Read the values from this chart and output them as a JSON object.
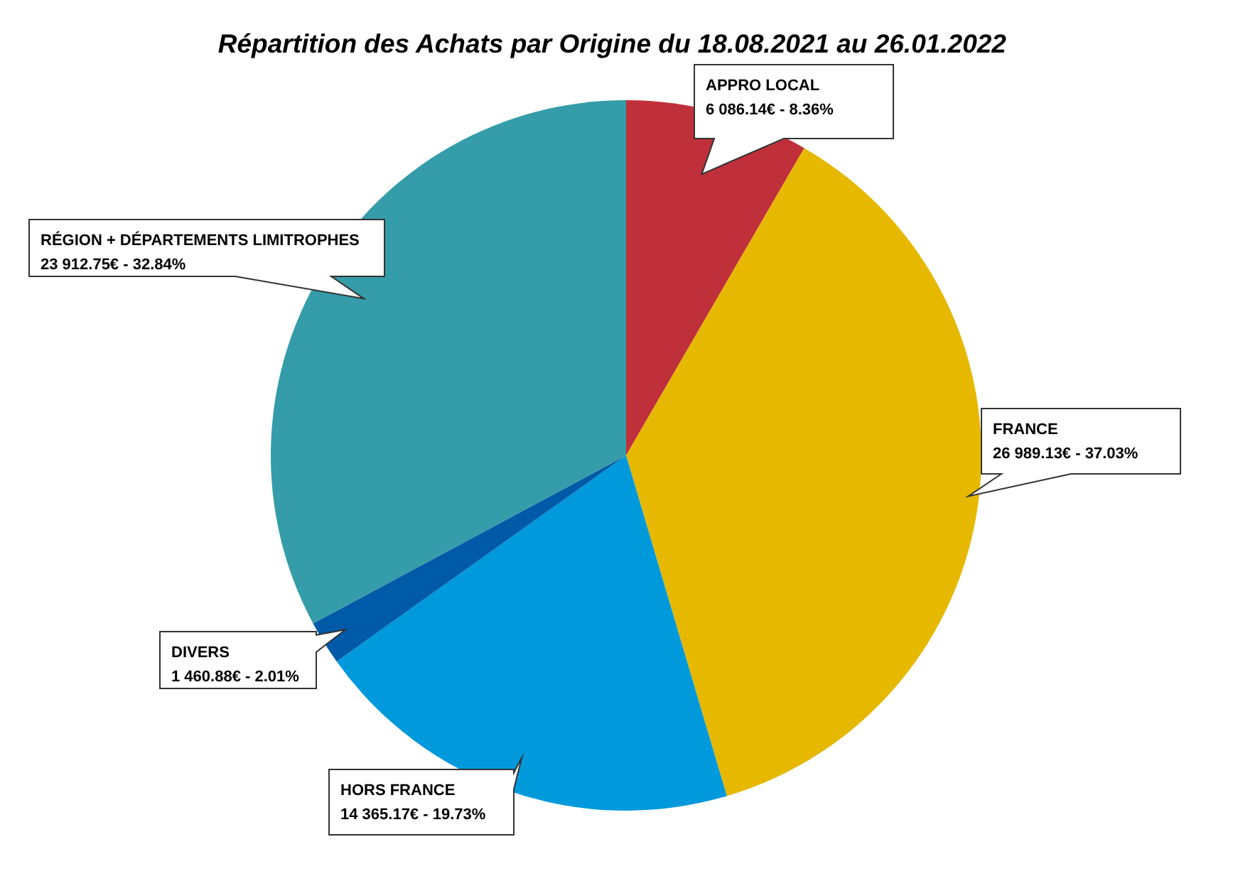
{
  "chart_data": {
    "type": "pie",
    "title": "Répartition des Achats par Origine du 18.08.2021 au 26.01.2022",
    "categories": [
      "APPRO LOCAL",
      "FRANCE",
      "HORS FRANCE",
      "DIVERS",
      "RÉGION + DÉPARTEMENTS LIMITROPHES"
    ],
    "values": [
      6086.14,
      26989.13,
      14365.17,
      1460.88,
      23912.75
    ],
    "colors": [
      "#c0303a",
      "#e6b800",
      "#0099dc",
      "#005aa8",
      "#359ca9"
    ],
    "value_labels": [
      "6 086.14€ - 8.36%",
      "26 989.13€ - 37.03%",
      "14 365.17€ - 19.73%",
      "1 460.88€ - 2.01%",
      "23 912.75€ - 32.84%"
    ]
  }
}
